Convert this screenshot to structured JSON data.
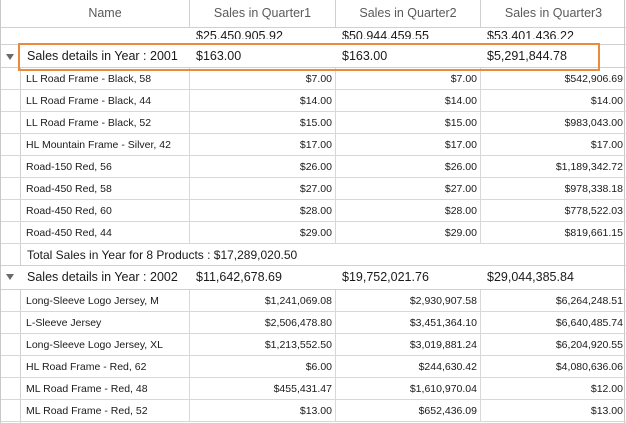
{
  "columns": [
    "Name",
    "Sales in Quarter1",
    "Sales in Quarter2",
    "Sales in Quarter3"
  ],
  "summary": [
    "$25,450,905.92",
    "$50,944,459.55",
    "$53,401,436.22"
  ],
  "groups": [
    {
      "caption": "Sales details in Year : 2001",
      "q1": "$163.00",
      "q2": "$163.00",
      "q3": "$5,291,844.78",
      "rows": [
        {
          "name": "LL Road Frame - Black, 58",
          "q1": "$7.00",
          "q2": "$7.00",
          "q3": "$542,906.69"
        },
        {
          "name": "LL Road Frame - Black, 44",
          "q1": "$14.00",
          "q2": "$14.00",
          "q3": "$14.00"
        },
        {
          "name": "LL Road Frame - Black, 52",
          "q1": "$15.00",
          "q2": "$15.00",
          "q3": "$983,043.00"
        },
        {
          "name": "HL Mountain Frame - Silver, 42",
          "q1": "$17.00",
          "q2": "$17.00",
          "q3": "$17.00"
        },
        {
          "name": "Road-150 Red, 56",
          "q1": "$26.00",
          "q2": "$26.00",
          "q3": "$1,189,342.72"
        },
        {
          "name": "Road-450 Red, 58",
          "q1": "$27.00",
          "q2": "$27.00",
          "q3": "$978,338.18"
        },
        {
          "name": "Road-450 Red, 60",
          "q1": "$28.00",
          "q2": "$28.00",
          "q3": "$778,522.03"
        },
        {
          "name": "Road-450 Red, 44",
          "q1": "$29.00",
          "q2": "$29.00",
          "q3": "$819,661.15"
        }
      ],
      "total": "Total Sales in Year for 8 Products : $17,289,020.50"
    },
    {
      "caption": "Sales details in Year : 2002",
      "q1": "$11,642,678.69",
      "q2": "$19,752,021.76",
      "q3": "$29,044,385.84",
      "rows": [
        {
          "name": "Long-Sleeve Logo Jersey, M",
          "q1": "$1,241,069.08",
          "q2": "$2,930,907.58",
          "q3": "$6,264,248.51"
        },
        {
          "name": "L-Sleeve Jersey",
          "q1": "$2,506,478.80",
          "q2": "$3,451,364.10",
          "q3": "$6,640,485.74"
        },
        {
          "name": "Long-Sleeve Logo Jersey, XL",
          "q1": "$1,213,552.50",
          "q2": "$3,019,881.24",
          "q3": "$6,204,920.55"
        },
        {
          "name": "HL Road Frame - Red, 62",
          "q1": "$6.00",
          "q2": "$244,630.42",
          "q3": "$4,080,636.06"
        },
        {
          "name": "ML Road Frame - Red, 48",
          "q1": "$455,431.47",
          "q2": "$1,610,970.04",
          "q3": "$12.00"
        },
        {
          "name": "ML Road Frame - Red, 52",
          "q1": "$13.00",
          "q2": "$652,436.09",
          "q3": "$13.00"
        }
      ]
    }
  ],
  "highlight_color": "#ea8a3c"
}
